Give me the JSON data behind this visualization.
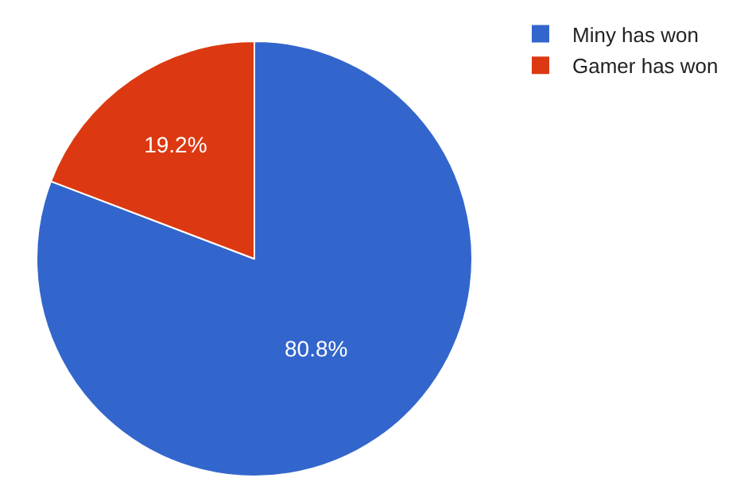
{
  "chart_data": {
    "type": "pie",
    "categories": [
      "Miny has won",
      "Gamer has won"
    ],
    "values": [
      80.8,
      19.2
    ],
    "colors": [
      "#3366cc",
      "#dc3912"
    ],
    "value_labels": [
      "80.8%",
      "19.2%"
    ],
    "legend": "top right"
  }
}
